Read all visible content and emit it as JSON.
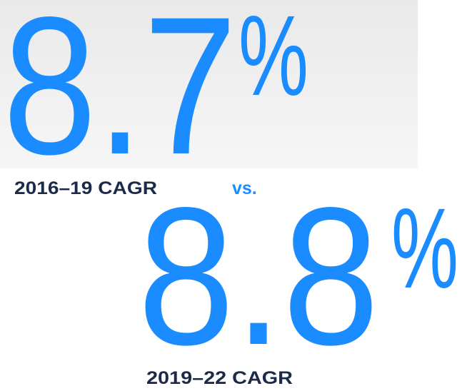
{
  "stats": [
    {
      "value": "8.7",
      "unit": "%",
      "label": "2016–19 CAGR"
    },
    {
      "value": "8.8",
      "unit": "%",
      "label": "2019–22 CAGR"
    }
  ],
  "separator": "vs."
}
